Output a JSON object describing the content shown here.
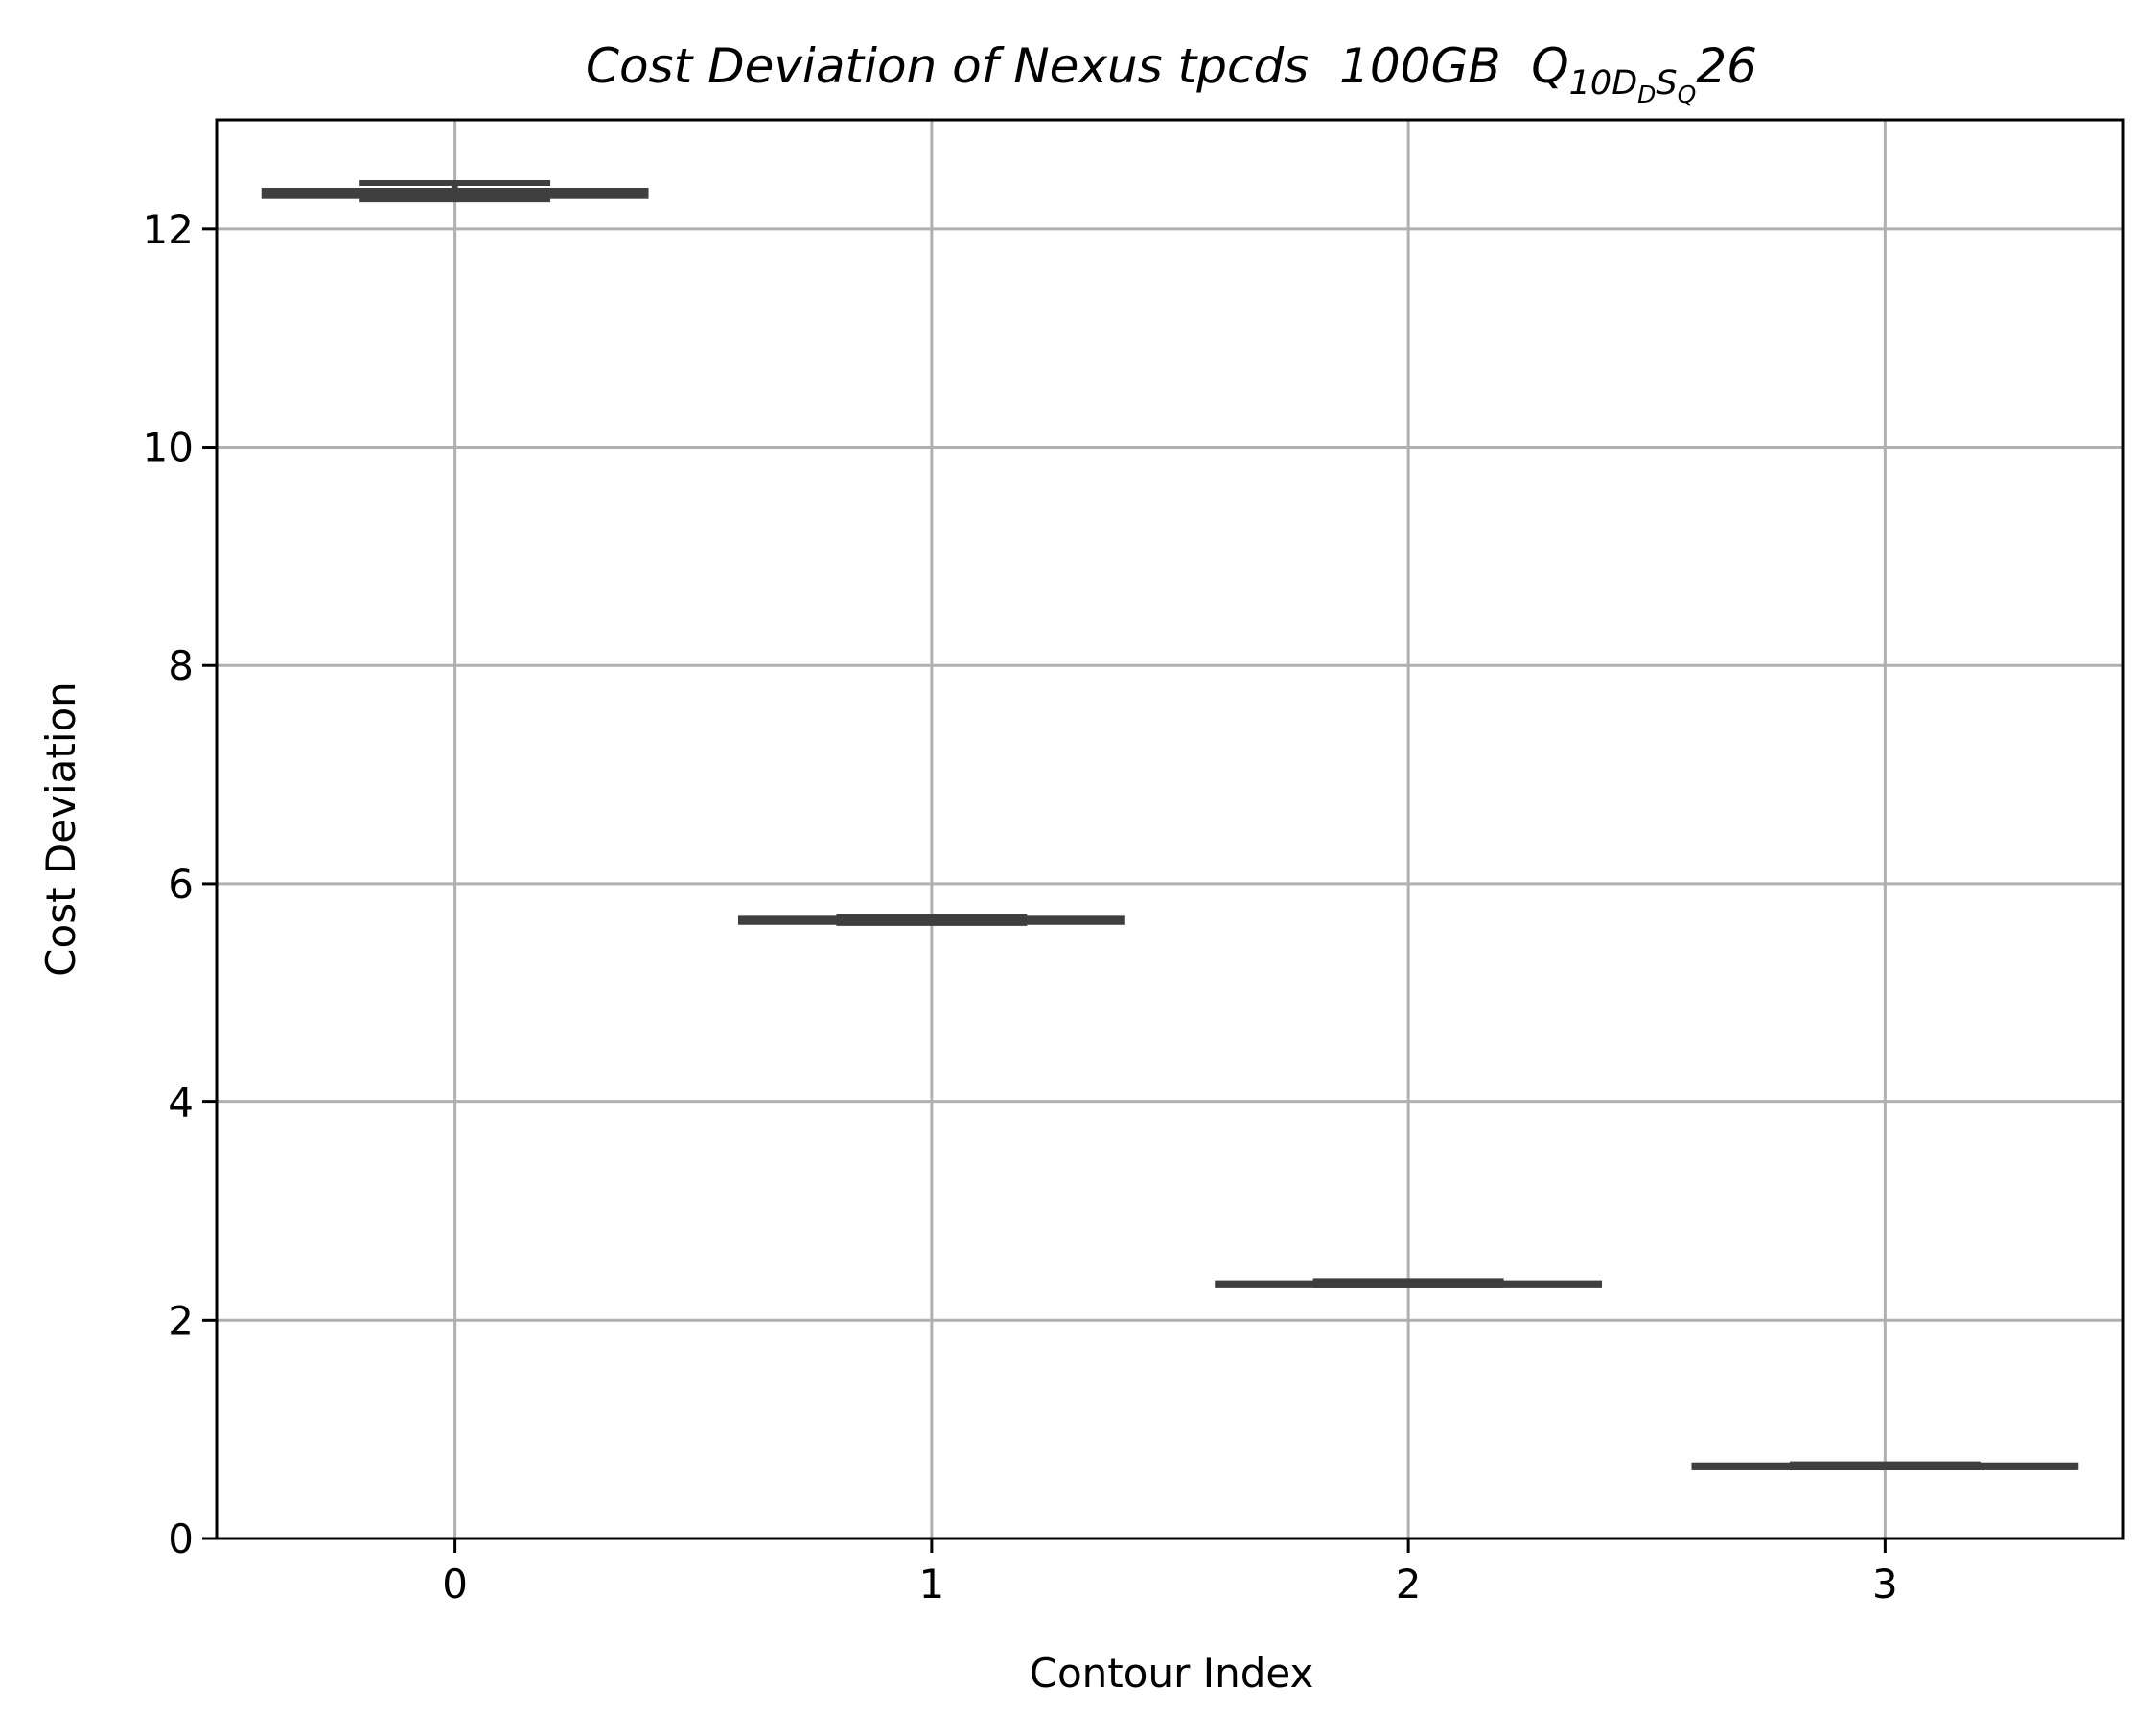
{
  "chart_data": {
    "type": "box",
    "title_parts": [
      {
        "text": "Cost Deviation of Nexus tpcds  100GB  Q",
        "level": 0
      },
      {
        "text": "10D",
        "level": 1
      },
      {
        "text": "D",
        "level": 2
      },
      {
        "text": "S",
        "level": 1
      },
      {
        "text": "Q",
        "level": 2
      },
      {
        "text": "26",
        "level": 0
      }
    ],
    "x_label": "Contour Index",
    "y_label": "Cost Deviation",
    "categories": [
      "0",
      "1",
      "2",
      "3"
    ],
    "boxes": [
      {
        "whislo": 12.27,
        "q1": 12.3,
        "med": 12.32,
        "q3": 12.35,
        "whishi": 12.42
      },
      {
        "whislo": 5.64,
        "q1": 5.65,
        "med": 5.66,
        "q3": 5.68,
        "whishi": 5.7
      },
      {
        "whislo": 2.32,
        "q1": 2.32,
        "med": 2.33,
        "q3": 2.34,
        "whishi": 2.36
      },
      {
        "whislo": 0.65,
        "q1": 0.66,
        "med": 0.66,
        "q3": 0.67,
        "whishi": 0.68
      }
    ],
    "color": "#3f3f3f",
    "xlim": [
      -0.5,
      3.5
    ],
    "ylim": [
      0,
      13
    ],
    "yticks": [
      0,
      2,
      4,
      6,
      8,
      10,
      12
    ],
    "grid": true
  }
}
